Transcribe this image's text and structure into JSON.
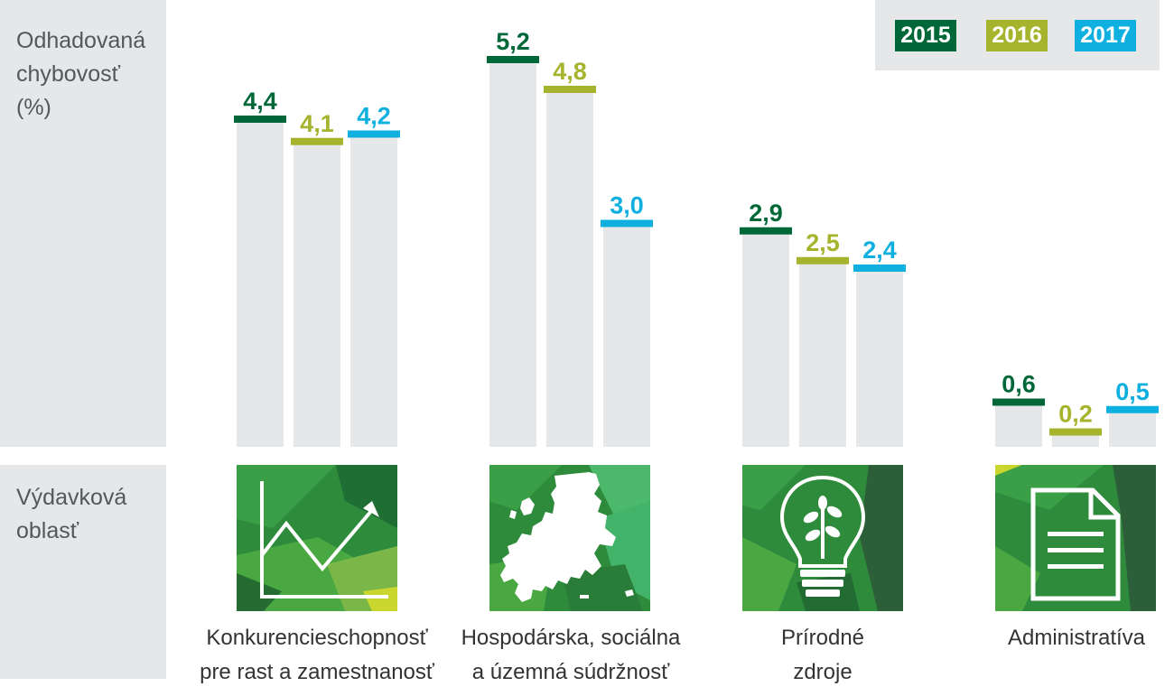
{
  "ylabel": [
    "Odhadovaná",
    "chybovosť",
    "(%)"
  ],
  "row_label": [
    "Výdavková",
    "oblasť"
  ],
  "colors": {
    "2015": "#006838",
    "2016": "#a6b32c",
    "2017": "#0fb0e0",
    "bar_bg": "#e6e7e8",
    "panel": "#e6e7e8"
  },
  "legend": [
    "2015",
    "2016",
    "2017"
  ],
  "chart_data": {
    "type": "bar",
    "categories": [
      [
        "Konkurencieschopnosť",
        "pre rast a zamestnanosť"
      ],
      [
        "Hospodárska, sociálna",
        "a územná súdržnosť"
      ],
      [
        "Prírodné",
        "zdroje"
      ],
      [
        "Administratíva"
      ]
    ],
    "series": [
      {
        "name": "2015",
        "values": [
          4.4,
          5.2,
          2.9,
          0.6
        ],
        "labels": [
          "4,4",
          "5,2",
          "2,9",
          "0,6"
        ]
      },
      {
        "name": "2016",
        "values": [
          4.1,
          4.8,
          2.5,
          0.2
        ],
        "labels": [
          "4,1",
          "4,8",
          "2,5",
          "0,2"
        ]
      },
      {
        "name": "2017",
        "values": [
          4.2,
          3.0,
          2.4,
          0.5
        ],
        "labels": [
          "4,2",
          "3,0",
          "2,4",
          "0,5"
        ]
      }
    ],
    "ylim": [
      0,
      5.2
    ],
    "legend_position": "top-right",
    "grid": false
  },
  "icons": [
    "chart-trend-icon",
    "europe-map-icon",
    "lightbulb-plant-icon",
    "document-icon"
  ]
}
